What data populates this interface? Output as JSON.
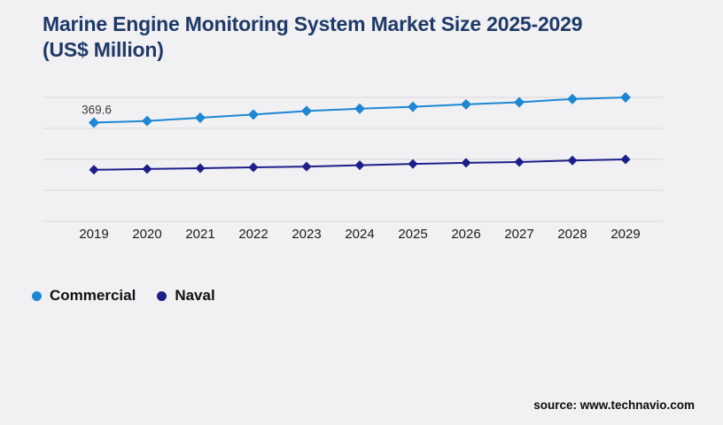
{
  "title_line1": "Marine Engine Monitoring System Market Size 2025-2029",
  "title_line2": "(US$ Million)",
  "source": "source: www.technavio.com",
  "colors": {
    "background": "#f1f1f3",
    "title": "#1f3a68",
    "gridline": "#d9d9d9",
    "axis_label": "#1b1b1b",
    "data_label": "#3c3c3c",
    "legend_text": "#111111",
    "commercial": "#1d87d4",
    "naval": "#1e1e8a"
  },
  "chart_data": {
    "type": "line",
    "title": "Marine Engine Monitoring System Market Size 2025-2029 (US$ Million)",
    "categories": [
      "2019",
      "2020",
      "2021",
      "2022",
      "2023",
      "2024",
      "2025",
      "2026",
      "2027",
      "2028",
      "2029"
    ],
    "series": [
      {
        "name": "Commercial",
        "color": "#1d87d4",
        "marker": "diamond",
        "values": [
          369.6,
          376,
          388,
          400,
          413,
          422,
          429,
          438,
          446,
          458,
          464
        ]
      },
      {
        "name": "Naval",
        "color": "#1e1e8a",
        "marker": "diamond",
        "values": [
          193,
          196,
          199,
          202,
          205,
          210,
          215,
          219,
          222,
          228,
          232
        ]
      }
    ],
    "data_labels": [
      {
        "series": "Commercial",
        "category": "2019",
        "text": "369.6"
      }
    ],
    "xlabel": "",
    "ylabel": "",
    "ylim": [
      0,
      500
    ],
    "gridlines": "horizontal",
    "grid_values": [
      0,
      116,
      232,
      348,
      464
    ],
    "legend_position": "bottom-left"
  },
  "legend": {
    "items": [
      {
        "label": "Commercial",
        "color": "#1d87d4"
      },
      {
        "label": "Naval",
        "color": "#1e1e8a"
      }
    ]
  }
}
